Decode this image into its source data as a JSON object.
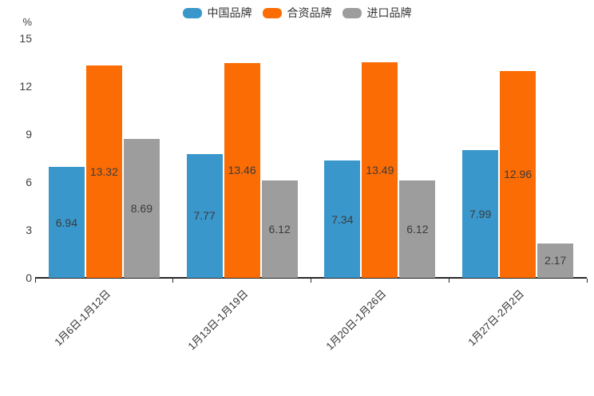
{
  "chart_data": {
    "type": "bar",
    "title": "",
    "unit_label": "%",
    "categories": [
      "1月6日-1月12日",
      "1月13日-1月19日",
      "1月20日-1月26日",
      "1月27日-2月2日"
    ],
    "series": [
      {
        "key": "china-brand",
        "name": "中国品牌",
        "color": "#3a97cb",
        "values": [
          6.94,
          7.77,
          7.34,
          7.99
        ]
      },
      {
        "key": "joint-venture-brand",
        "name": "合资品牌",
        "color": "#fc6c04",
        "values": [
          13.32,
          13.46,
          13.49,
          12.96
        ]
      },
      {
        "key": "import-brand",
        "name": "进口品牌",
        "color": "#9d9d9d",
        "values": [
          8.69,
          6.12,
          6.12,
          2.17
        ]
      }
    ],
    "y_axis": {
      "min": 0,
      "max": 15,
      "ticks": [
        0,
        3,
        6,
        9,
        12,
        15
      ]
    },
    "legend_position": "top",
    "grid": false,
    "value_labels": "inside-center",
    "value_decimals": 2
  },
  "colors": {
    "axis_line": "#262626",
    "tick_label": "#3f3f3f",
    "value_label": "#3b3b3b",
    "background": "#ffffff"
  }
}
